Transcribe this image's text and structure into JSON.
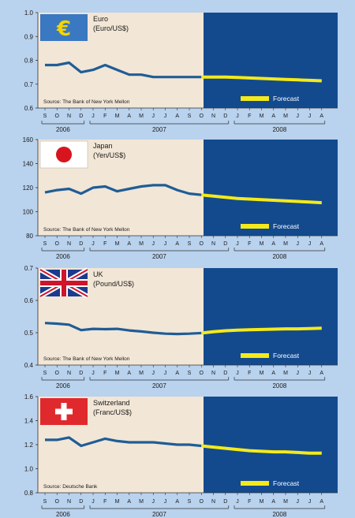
{
  "colors": {
    "page_bg": "#b9d2ee",
    "history_bg": "#f2e6d6",
    "forecast_bg": "#134a8e",
    "line": "#1f5d96",
    "forecast_line": "#f4ea1a",
    "euro_flag": "#3a78c2",
    "euro_symbol": "#f4d400",
    "japan_dot": "#d8141f",
    "swiss_red": "#e0292d"
  },
  "legend_label": "Forecast",
  "months": [
    "S",
    "O",
    "N",
    "D",
    "J",
    "F",
    "M",
    "A",
    "M",
    "J",
    "J",
    "A",
    "S",
    "O",
    "N",
    "D",
    "J",
    "F",
    "M",
    "A",
    "M",
    "J",
    "J",
    "A"
  ],
  "years": [
    {
      "label": "2006",
      "from": 0,
      "to": 3
    },
    {
      "label": "2007",
      "from": 4,
      "to": 15
    },
    {
      "label": "2008",
      "from": 16,
      "to": 23
    }
  ],
  "chart_data": [
    {
      "type": "line",
      "title": "Euro",
      "subtitle": "(Euro/US$)",
      "flag": "euro-flag",
      "source": "Source: The Bank of New York Mellon",
      "ylim": [
        0.6,
        1.0
      ],
      "yticks": [
        "0.6",
        "0.7",
        "0.8",
        "0.9",
        "1.0"
      ],
      "grid": false,
      "series": [
        {
          "kind": "actual",
          "x": [
            0,
            1,
            2,
            3,
            4,
            5,
            6,
            7,
            8,
            9,
            10,
            11,
            12,
            13
          ],
          "values": [
            0.78,
            0.78,
            0.79,
            0.75,
            0.76,
            0.78,
            0.76,
            0.74,
            0.74,
            0.73,
            0.73,
            0.73,
            0.73,
            0.73
          ]
        },
        {
          "kind": "forecast",
          "x": [
            13,
            14,
            15,
            16,
            17,
            18,
            19,
            20,
            21,
            22,
            23
          ],
          "values": [
            0.73,
            0.73,
            0.73,
            0.728,
            0.726,
            0.724,
            0.722,
            0.72,
            0.718,
            0.716,
            0.714
          ]
        }
      ]
    },
    {
      "type": "line",
      "title": "Japan",
      "subtitle": "(Yen/US$)",
      "flag": "japan-flag",
      "source": "Source: The Bank of New York Mellon",
      "ylim": [
        80,
        160
      ],
      "yticks": [
        "80",
        "100",
        "120",
        "140",
        "160"
      ],
      "grid": false,
      "series": [
        {
          "kind": "actual",
          "x": [
            0,
            1,
            2,
            3,
            4,
            5,
            6,
            7,
            8,
            9,
            10,
            11,
            12,
            13
          ],
          "values": [
            116,
            118,
            119,
            115,
            120,
            121,
            117,
            119,
            121,
            122,
            122,
            118,
            115,
            114
          ]
        },
        {
          "kind": "forecast",
          "x": [
            13,
            14,
            15,
            16,
            17,
            18,
            19,
            20,
            21,
            22,
            23
          ],
          "values": [
            114,
            113,
            112,
            111,
            110.5,
            110,
            109.5,
            109,
            108.5,
            108,
            107.5
          ]
        }
      ]
    },
    {
      "type": "line",
      "title": "UK",
      "subtitle": "(Pound/US$)",
      "flag": "uk-flag",
      "source": "Source: The Bank of New York Mellon",
      "ylim": [
        0.4,
        0.7
      ],
      "yticks": [
        "0.4",
        "0.5",
        "0.6",
        "0.7"
      ],
      "grid": false,
      "series": [
        {
          "kind": "actual",
          "x": [
            0,
            1,
            2,
            3,
            4,
            5,
            6,
            7,
            8,
            9,
            10,
            11,
            12,
            13
          ],
          "values": [
            0.53,
            0.528,
            0.525,
            0.508,
            0.512,
            0.511,
            0.512,
            0.507,
            0.504,
            0.5,
            0.497,
            0.496,
            0.497,
            0.499
          ]
        },
        {
          "kind": "forecast",
          "x": [
            13,
            14,
            15,
            16,
            17,
            18,
            19,
            20,
            21,
            22,
            23
          ],
          "values": [
            0.499,
            0.503,
            0.506,
            0.508,
            0.509,
            0.51,
            0.511,
            0.512,
            0.512,
            0.513,
            0.514
          ]
        }
      ]
    },
    {
      "type": "line",
      "title": "Switzerland",
      "subtitle": "(Franc/US$)",
      "flag": "swiss-flag",
      "source": "Source: Deutsche Bank",
      "ylim": [
        0.8,
        1.6
      ],
      "yticks": [
        "0.8",
        "1.0",
        "1.2",
        "1.4",
        "1.6"
      ],
      "grid": false,
      "series": [
        {
          "kind": "actual",
          "x": [
            0,
            1,
            2,
            3,
            4,
            5,
            6,
            7,
            8,
            9,
            10,
            11,
            12,
            13
          ],
          "values": [
            1.24,
            1.24,
            1.26,
            1.19,
            1.22,
            1.25,
            1.23,
            1.22,
            1.22,
            1.22,
            1.21,
            1.2,
            1.2,
            1.19
          ]
        },
        {
          "kind": "forecast",
          "x": [
            13,
            14,
            15,
            16,
            17,
            18,
            19,
            20,
            21,
            22,
            23
          ],
          "values": [
            1.19,
            1.18,
            1.17,
            1.16,
            1.15,
            1.145,
            1.14,
            1.14,
            1.135,
            1.13,
            1.13
          ]
        }
      ]
    }
  ]
}
